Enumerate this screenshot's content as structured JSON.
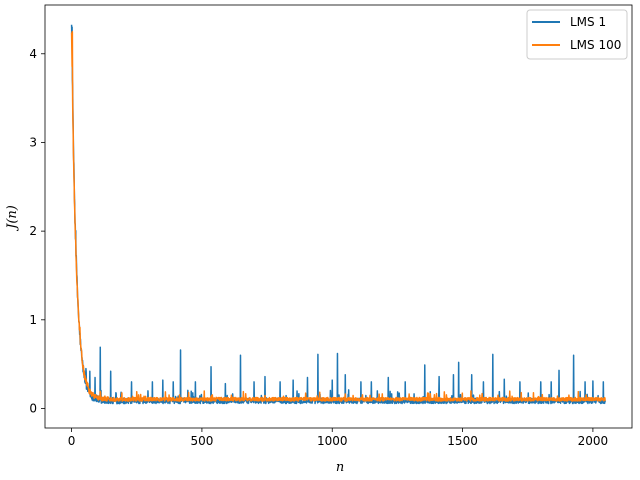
{
  "chart_data": {
    "type": "line",
    "title": "",
    "xlabel": "n",
    "ylabel": "J(n)",
    "xlim": [
      -102,
      2150
    ],
    "ylim": [
      -0.22,
      4.55
    ],
    "xticks": [
      0,
      500,
      1000,
      1500,
      2000
    ],
    "xtick_labels": [
      "0",
      "500",
      "1000",
      "1500",
      "2000"
    ],
    "yticks": [
      0,
      1,
      2,
      3,
      4
    ],
    "ytick_labels": [
      "0",
      "1",
      "2",
      "3",
      "4"
    ],
    "grid": false,
    "legend_position": "top-right",
    "series": [
      {
        "name": "LMS 1",
        "color": "#1f77b4",
        "n_points": 2048,
        "initial_value": 4.33,
        "decay_scale": 18,
        "floor_value": 0.08,
        "noise_amplitude": 0.06,
        "spikes": [
          [
            2,
            4.3
          ],
          [
            6,
            1.8
          ],
          [
            10,
            1.1
          ],
          [
            20,
            0.8
          ],
          [
            30,
            0.55
          ],
          [
            40,
            0.4
          ],
          [
            55,
            0.45
          ],
          [
            70,
            0.42
          ],
          [
            90,
            0.35
          ],
          [
            110,
            0.69
          ],
          [
            150,
            0.42
          ],
          [
            230,
            0.3
          ],
          [
            310,
            0.3
          ],
          [
            350,
            0.32
          ],
          [
            390,
            0.3
          ],
          [
            418,
            0.66
          ],
          [
            475,
            0.3
          ],
          [
            535,
            0.47
          ],
          [
            590,
            0.28
          ],
          [
            648,
            0.6
          ],
          [
            700,
            0.3
          ],
          [
            742,
            0.36
          ],
          [
            800,
            0.3
          ],
          [
            850,
            0.32
          ],
          [
            905,
            0.35
          ],
          [
            945,
            0.61
          ],
          [
            1000,
            0.32
          ],
          [
            1020,
            0.62
          ],
          [
            1050,
            0.38
          ],
          [
            1110,
            0.3
          ],
          [
            1150,
            0.3
          ],
          [
            1215,
            0.35
          ],
          [
            1280,
            0.3
          ],
          [
            1355,
            0.49
          ],
          [
            1410,
            0.36
          ],
          [
            1465,
            0.38
          ],
          [
            1485,
            0.52
          ],
          [
            1535,
            0.38
          ],
          [
            1580,
            0.3
          ],
          [
            1616,
            0.61
          ],
          [
            1660,
            0.33
          ],
          [
            1720,
            0.3
          ],
          [
            1800,
            0.3
          ],
          [
            1840,
            0.3
          ],
          [
            1870,
            0.43
          ],
          [
            1926,
            0.6
          ],
          [
            1970,
            0.3
          ],
          [
            2000,
            0.31
          ],
          [
            2040,
            0.3
          ]
        ]
      },
      {
        "name": "LMS 100",
        "color": "#ff7f0e",
        "n_points": 2048,
        "initial_value": 4.25,
        "decay_scale": 18,
        "floor_value": 0.1,
        "noise_amplitude": 0.04,
        "spikes": [
          [
            3,
            4.25
          ],
          [
            8,
            1.6
          ],
          [
            12,
            1.05
          ],
          [
            18,
            0.95
          ],
          [
            25,
            0.7
          ],
          [
            35,
            0.45
          ],
          [
            50,
            0.25
          ]
        ]
      }
    ]
  }
}
